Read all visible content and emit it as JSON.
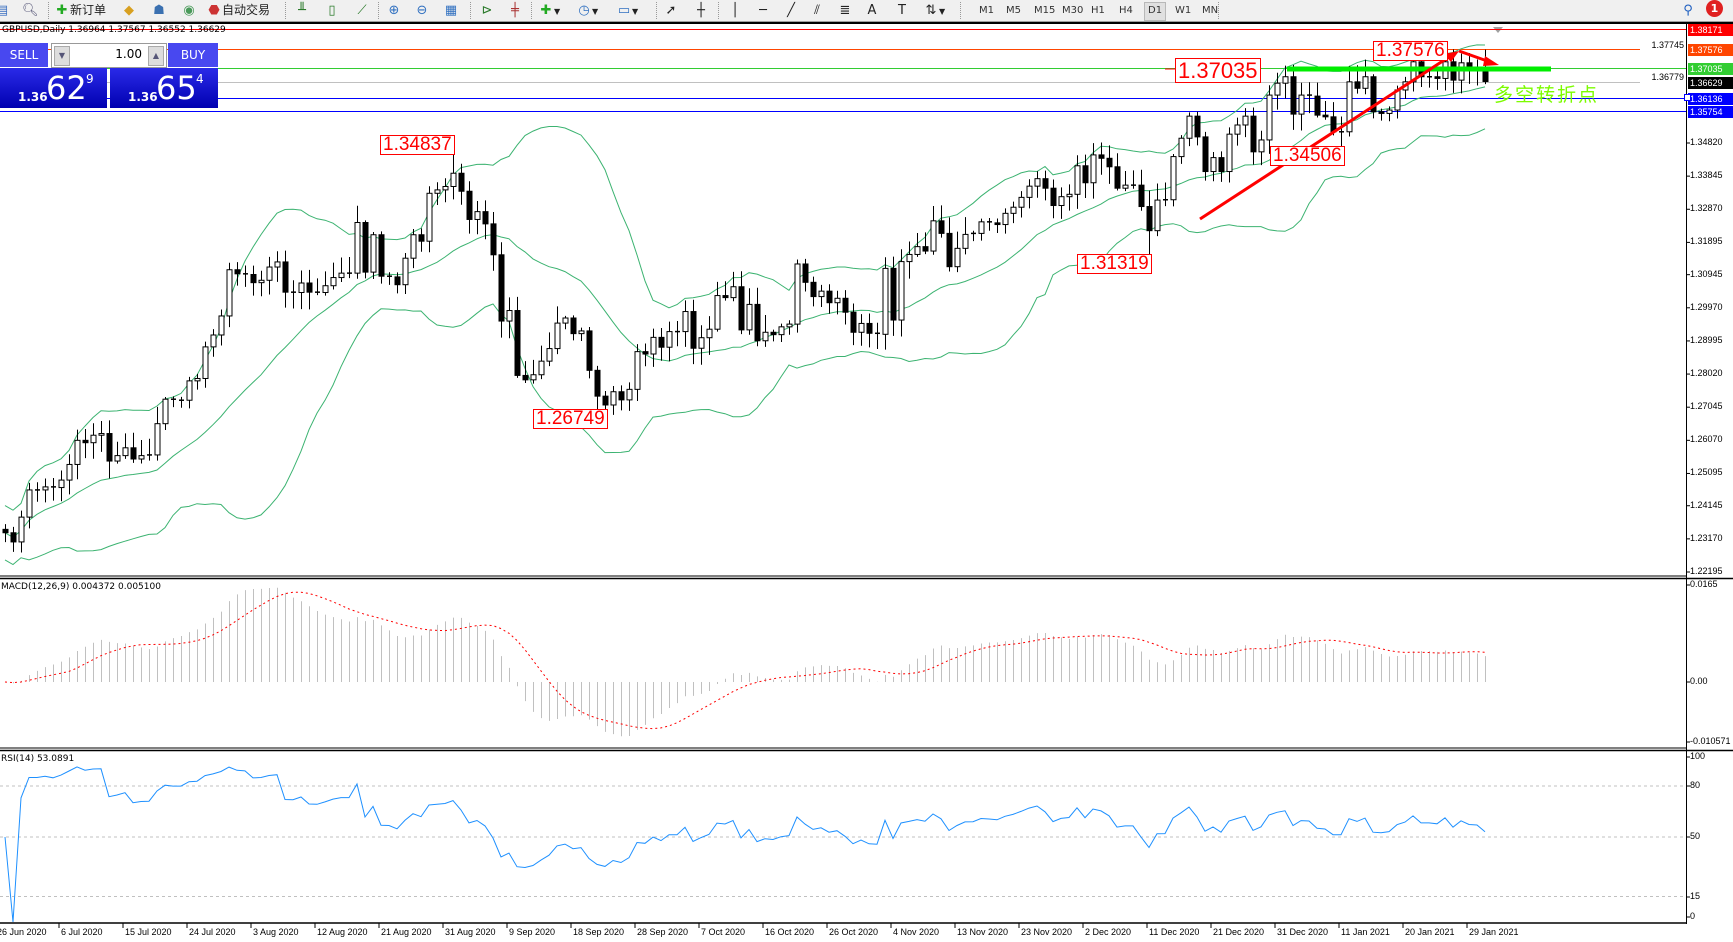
{
  "toolbar": {
    "new_order_label": "新订单",
    "auto_trading_label": "自动交易",
    "icons": [
      "new-chart-icon",
      "zoom-doc-icon",
      "new-order-icon",
      "metaeditor-icon",
      "market-icon",
      "signals-icon",
      "auto-trading-icon",
      "bar-chart-icon",
      "candlestick-icon",
      "line-chart-icon",
      "zoom-in-icon",
      "zoom-out-icon",
      "tile-icon",
      "chart-shift-icon",
      "auto-scroll-icon",
      "indicators-icon",
      "periods-icon",
      "templates-icon",
      "cursor-icon",
      "crosshair-icon",
      "vertical-line-icon",
      "horizontal-line-icon",
      "trendline-icon",
      "channel-icon",
      "fibonacci-icon",
      "text-icon",
      "text-label-icon",
      "arrows-icon",
      "search-icon",
      "notification-icon"
    ],
    "timeframes": [
      "M1",
      "M5",
      "M15",
      "M30",
      "H1",
      "H4",
      "D1",
      "W1",
      "MN"
    ],
    "active_timeframe": "D1",
    "notification_count": "1"
  },
  "chart": {
    "title": "GBPUSD,Daily  1.36964 1.37567 1.36552 1.36629",
    "symbol": "GBPUSD",
    "period": "Daily",
    "ohlc_last": {
      "open": 1.36964,
      "high": 1.37567,
      "low": 1.36552,
      "close": 1.36629
    }
  },
  "one_click": {
    "sell_label": "SELL",
    "buy_label": "BUY",
    "lot": "1.00",
    "sell_price": {
      "prefix": "1.36",
      "big": "62",
      "sup": "9"
    },
    "buy_price": {
      "prefix": "1.36",
      "big": "65",
      "sup": "4"
    }
  },
  "price_lines": [
    {
      "price": "1.38171",
      "color": "#ff0000",
      "text_color": "#ffffff"
    },
    {
      "price": "1.37745",
      "color": "#ffffff",
      "text_color": "#000000"
    },
    {
      "price": "1.37576",
      "color": "#ff4500",
      "text_color": "#ffffff"
    },
    {
      "price": "1.37035",
      "color": "#32cd32",
      "text_color": "#ffffff"
    },
    {
      "price": "1.36779",
      "color": "#ffffff",
      "text_color": "#000000"
    },
    {
      "price": "1.36629",
      "color": "#000000",
      "text_color": "#ffffff"
    },
    {
      "price": "1.36136",
      "color": "#0000ff",
      "text_color": "#ffffff"
    },
    {
      "price": "1.35754",
      "color": "#0000ff",
      "text_color": "#ffffff"
    }
  ],
  "price_axis": [
    "1.34820",
    "1.33845",
    "1.32870",
    "1.31895",
    "1.30945",
    "1.29970",
    "1.28995",
    "1.28020",
    "1.27045",
    "1.26070",
    "1.25095",
    "1.24145",
    "1.23170",
    "1.22195"
  ],
  "annotations": [
    "1.34837",
    "1.26749",
    "1.31319",
    "1.34506",
    "1.37576",
    "1.37035"
  ],
  "note_text": "多空转折点",
  "colors": {
    "bollinger": "#3cb371",
    "trend_arrow": "#ff0000",
    "pivot_line": "#00ee00",
    "macd_hist": "#c0c0c0",
    "macd_signal": "#ff0000",
    "rsi": "#1e90ff",
    "bull_body": "#ffffff",
    "bear_body": "#000000"
  },
  "main_chart": {
    "type": "candlestick",
    "overlay": "Bollinger Bands",
    "closes": [
      1.2335,
      1.2308,
      1.2381,
      1.2461,
      1.2461,
      1.247,
      1.2468,
      1.249,
      1.2536,
      1.2607,
      1.26,
      1.2622,
      1.2627,
      1.2546,
      1.2562,
      1.2585,
      1.2552,
      1.2562,
      1.2564,
      1.2656,
      1.2728,
      1.2725,
      1.2725,
      1.2782,
      1.2789,
      1.2882,
      1.2917,
      1.2973,
      1.3109,
      1.3097,
      1.3095,
      1.3071,
      1.3078,
      1.3117,
      1.3132,
      1.3043,
      1.3042,
      1.307,
      1.3043,
      1.3042,
      1.3062,
      1.3086,
      1.3099,
      1.3099,
      1.3248,
      1.3102,
      1.3212,
      1.309,
      1.3088,
      1.3065,
      1.3143,
      1.3212,
      1.3193,
      1.3334,
      1.3344,
      1.3354,
      1.3393,
      1.334,
      1.3257,
      1.328,
      1.3244,
      1.3153,
      1.2958,
      1.2989,
      1.2798,
      1.2785,
      1.28,
      1.284,
      1.2877,
      1.2952,
      1.2967,
      1.2921,
      1.2929,
      1.2813,
      1.2737,
      1.2711,
      1.275,
      1.2726,
      1.2757,
      1.2868,
      1.2861,
      1.291,
      1.2881,
      1.2927,
      1.2927,
      1.2986,
      1.2878,
      1.2909,
      1.2934,
      1.3033,
      1.3027,
      1.3059,
      1.2932,
      1.3007,
      1.29,
      1.2925,
      1.2918,
      1.2941,
      1.2949,
      1.3126,
      1.3072,
      1.303,
      1.3046,
      1.3012,
      1.3025,
      1.2984,
      1.2925,
      1.2951,
      1.2922,
      1.2919,
      1.3113,
      1.2961,
      1.3133,
      1.3154,
      1.3177,
      1.3164,
      1.3253,
      1.3216,
      1.3118,
      1.3172,
      1.3213,
      1.3216,
      1.325,
      1.3247,
      1.3242,
      1.3275,
      1.3293,
      1.3322,
      1.3355,
      1.3377,
      1.3349,
      1.3298,
      1.3324,
      1.3331,
      1.3415,
      1.3365,
      1.3447,
      1.3437,
      1.3412,
      1.3349,
      1.3358,
      1.3358,
      1.3295,
      1.3224,
      1.3314,
      1.3315,
      1.3442,
      1.3496,
      1.3561,
      1.35,
      1.3398,
      1.3439,
      1.3398,
      1.3508,
      1.3535,
      1.3561,
      1.3456,
      1.3491,
      1.3623,
      1.3658,
      1.3677,
      1.3567,
      1.3623,
      1.362,
      1.3564,
      1.3559,
      1.3515,
      1.3515,
      1.3662,
      1.3643,
      1.3677,
      1.3574,
      1.3569,
      1.3579,
      1.3638,
      1.3662,
      1.3721,
      1.3677,
      1.3677,
      1.3672,
      1.3721,
      1.3667,
      1.3718,
      1.3697,
      1.3694,
      1.36629
    ]
  },
  "macd": {
    "title": "MACD(12,26,9) 0.004372 0.005100",
    "axis": [
      "0.0165",
      "0.00",
      "-0.010571"
    ]
  },
  "rsi": {
    "title": "RSI(14) 53.0891",
    "axis": [
      "100",
      "80",
      "50",
      "15",
      "0"
    ],
    "levels": [
      80,
      50,
      15
    ]
  },
  "date_axis": [
    "26 Jun 2020",
    "6 Jul 2020",
    "15 Jul 2020",
    "24 Jul 2020",
    "3 Aug 2020",
    "12 Aug 2020",
    "21 Aug 2020",
    "31 Aug 2020",
    "9 Sep 2020",
    "18 Sep 2020",
    "28 Sep 2020",
    "7 Oct 2020",
    "16 Oct 2020",
    "26 Oct 2020",
    "4 Nov 2020",
    "13 Nov 2020",
    "23 Nov 2020",
    "2 Dec 2020",
    "11 Dec 2020",
    "21 Dec 2020",
    "31 Dec 2020",
    "11 Jan 2021",
    "20 Jan 2021",
    "29 Jan 2021"
  ]
}
